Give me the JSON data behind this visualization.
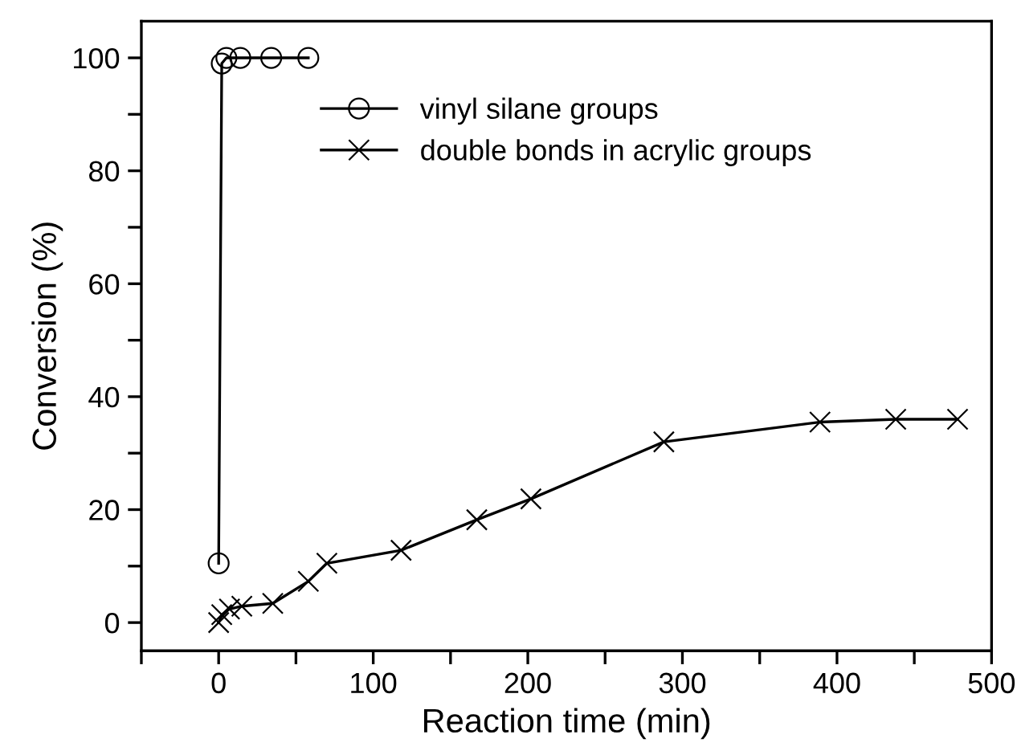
{
  "chart_data": {
    "type": "line",
    "xlabel": "Reaction time (min)",
    "ylabel": "Conversion (%)",
    "xlim": [
      -50,
      500
    ],
    "ylim": [
      -5,
      106.5
    ],
    "xticks": [
      {
        "value": -50,
        "label": null
      },
      0,
      {
        "value": 50,
        "label": null
      },
      100,
      {
        "value": 150,
        "label": null
      },
      200,
      {
        "value": 250,
        "label": null
      },
      300,
      {
        "value": 350,
        "label": null
      },
      400,
      {
        "value": 450,
        "label": null
      },
      500
    ],
    "yticks": [
      0,
      {
        "value": 10,
        "label": null
      },
      20,
      {
        "value": 30,
        "label": null
      },
      40,
      {
        "value": 50,
        "label": null
      },
      60,
      {
        "value": 70,
        "label": null
      },
      80,
      {
        "value": 90,
        "label": null
      },
      100
    ],
    "grid": false,
    "legend": "top",
    "line_style": "solid",
    "series": [
      {
        "name": "vinyl silane groups",
        "color": "#000000",
        "marker": "circle",
        "x": [
          0,
          2,
          5,
          14,
          34,
          58
        ],
        "values": [
          10.5,
          99,
          100,
          100,
          100,
          100
        ]
      },
      {
        "name": "double bonds in acrylic groups",
        "color": "#000000",
        "marker": "cross",
        "x": [
          0,
          2,
          7,
          15,
          35,
          58,
          70,
          118,
          167,
          202,
          288,
          389,
          438,
          478
        ],
        "values": [
          0,
          1.4,
          2.4,
          2.9,
          3.4,
          7.3,
          10.5,
          12.8,
          18.2,
          21.9,
          32,
          35.5,
          36,
          36
        ]
      }
    ]
  }
}
